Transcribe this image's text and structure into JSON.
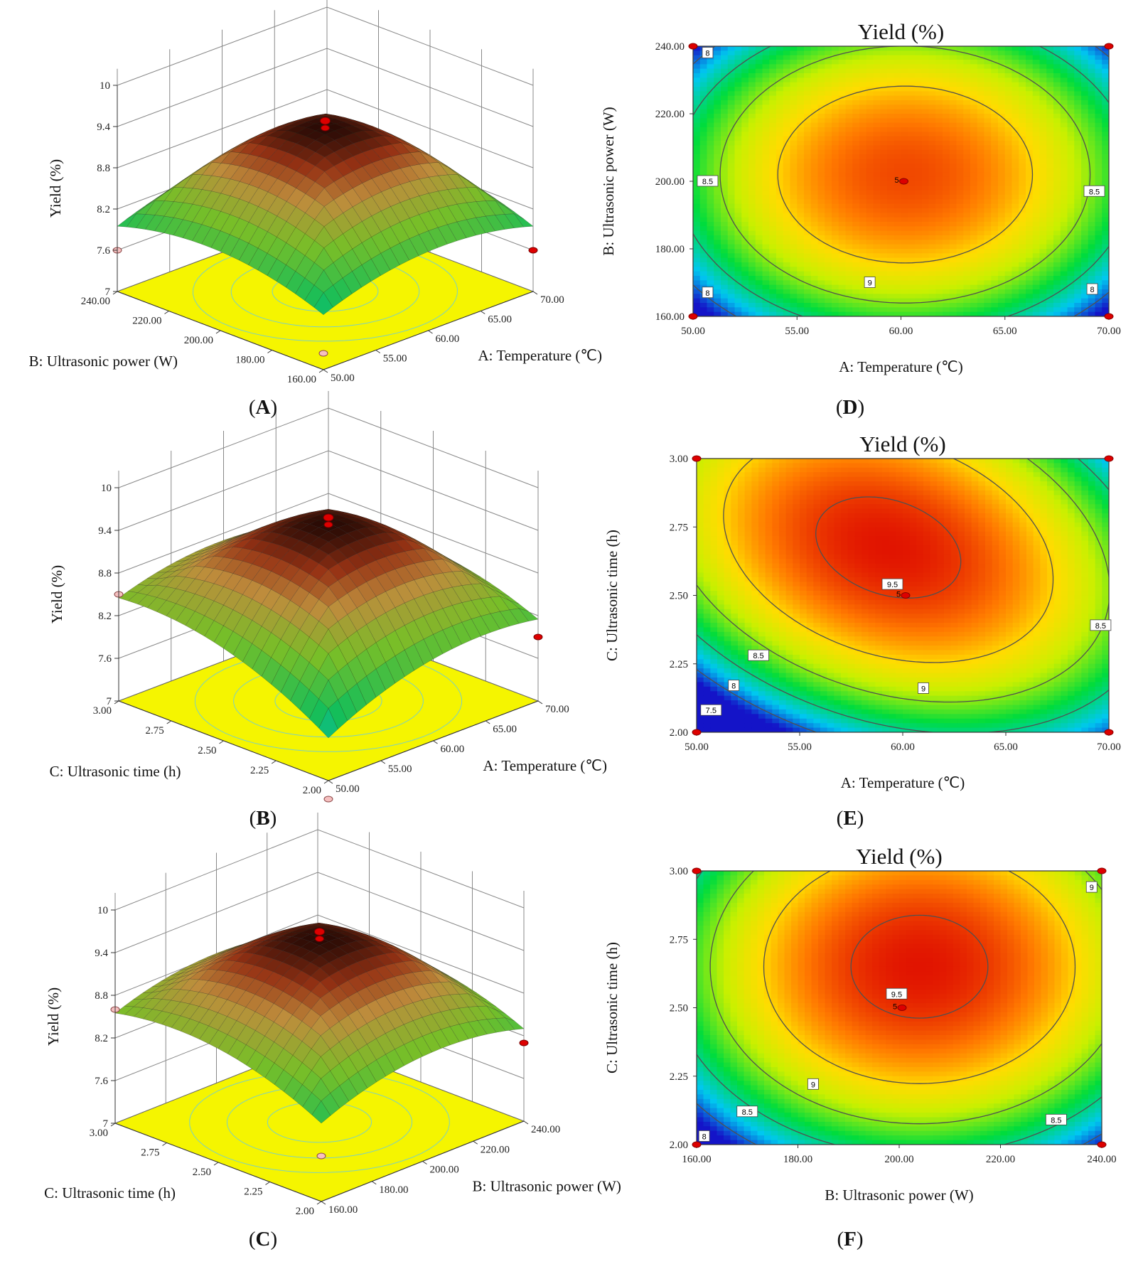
{
  "chart_data": [
    {
      "panel": "A",
      "type": "surface3d",
      "zlabel": "Yield (%)",
      "zticks": [
        "7",
        "7.6",
        "8.2",
        "8.8",
        "9.4",
        "10"
      ],
      "zlim": [
        7,
        10
      ],
      "xlabel": "A: Temperature (℃)",
      "xticks": [
        "50.00",
        "55.00",
        "60.00",
        "65.00",
        "70.00"
      ],
      "ylabel": "B: Ultrasonic power (W)",
      "yticks": [
        "160.00",
        "180.00",
        "200.00",
        "220.00",
        "240.00"
      ],
      "peak": 9.4,
      "corners": {
        "low_low": 7.3,
        "left": 7.6,
        "right": 7.6,
        "back": 7.9
      }
    },
    {
      "panel": "B",
      "type": "surface3d",
      "zlabel": "Yield (%)",
      "zticks": [
        "7",
        "7.6",
        "8.2",
        "8.8",
        "9.4",
        "10"
      ],
      "zlim": [
        7,
        10
      ],
      "xlabel": "A: Temperature (℃)",
      "xticks": [
        "50.00",
        "55.00",
        "60.00",
        "65.00",
        "70.00"
      ],
      "ylabel": "C: Ultrasonic time (h)",
      "yticks": [
        "2.00",
        "2.25",
        "2.50",
        "2.75",
        "3.00"
      ],
      "peak": 9.5,
      "corners": {
        "low_low": 6.8,
        "left": 8.5,
        "right": 7.9,
        "back": 8.4
      }
    },
    {
      "panel": "C",
      "type": "surface3d",
      "zlabel": "Yield (%)",
      "zticks": [
        "7",
        "7.6",
        "8.2",
        "8.8",
        "9.4",
        "10"
      ],
      "zlim": [
        7,
        10
      ],
      "xlabel": "B: Ultrasonic power (W)",
      "xticks": [
        "160.00",
        "180.00",
        "200.00",
        "220.00",
        "240.00"
      ],
      "ylabel": "C: Ultrasonic time (h)",
      "yticks": [
        "2.00",
        "2.25",
        "2.50",
        "2.75",
        "3.00"
      ],
      "peak": 9.6,
      "corners": {
        "low_low": 7.7,
        "left": 8.6,
        "right": 8.1,
        "back": 8.6
      }
    },
    {
      "panel": "D",
      "type": "contour",
      "title": "Yield (%)",
      "xlabel": "A: Temperature (℃)",
      "xticks": [
        "50.00",
        "55.00",
        "60.00",
        "65.00",
        "70.00"
      ],
      "xlim": [
        50,
        70
      ],
      "ylabel": "B: Ultrasonic power (W)",
      "yticks": [
        "160.00",
        "180.00",
        "200.00",
        "220.00",
        "240.00"
      ],
      "ylim": [
        160,
        240
      ],
      "center": [
        60,
        200
      ],
      "center_label": "5",
      "contour_labels": [
        {
          "text": "8",
          "x": 50.7,
          "y": 238
        },
        {
          "text": "8.5",
          "x": 50.7,
          "y": 200
        },
        {
          "text": "9",
          "x": 58.5,
          "y": 170
        },
        {
          "text": "8",
          "x": 50.7,
          "y": 167
        },
        {
          "text": "8.5",
          "x": 69.3,
          "y": 197
        },
        {
          "text": "8",
          "x": 69.2,
          "y": 168
        }
      ]
    },
    {
      "panel": "E",
      "type": "contour",
      "title": "Yield (%)",
      "xlabel": "A: Temperature (℃)",
      "xticks": [
        "50.00",
        "55.00",
        "60.00",
        "65.00",
        "70.00"
      ],
      "xlim": [
        50,
        70
      ],
      "ylabel": "C: Ultrasonic time (h)",
      "yticks": [
        "2.00",
        "2.25",
        "2.50",
        "2.75",
        "3.00"
      ],
      "ylim": [
        2.0,
        3.0
      ],
      "center": [
        60,
        2.5
      ],
      "center_label": "5",
      "contour_labels": [
        {
          "text": "9.5",
          "x": 59.5,
          "y": 2.54
        },
        {
          "text": "9",
          "x": 61.0,
          "y": 2.16
        },
        {
          "text": "8.5",
          "x": 53.0,
          "y": 2.28
        },
        {
          "text": "8",
          "x": 51.8,
          "y": 2.17
        },
        {
          "text": "7.5",
          "x": 50.7,
          "y": 2.08
        },
        {
          "text": "8.5",
          "x": 69.6,
          "y": 2.39
        }
      ]
    },
    {
      "panel": "F",
      "type": "contour",
      "title": "Yield (%)",
      "xlabel": "B: Ultrasonic power (W)",
      "xticks": [
        "160.00",
        "180.00",
        "200.00",
        "220.00",
        "240.00"
      ],
      "xlim": [
        160,
        240
      ],
      "ylabel": "C: Ultrasonic time (h)",
      "yticks": [
        "2.00",
        "2.25",
        "2.50",
        "2.75",
        "3.00"
      ],
      "ylim": [
        2.0,
        3.0
      ],
      "center": [
        200,
        2.5
      ],
      "center_label": "5",
      "contour_labels": [
        {
          "text": "9.5",
          "x": 199.5,
          "y": 2.55
        },
        {
          "text": "9",
          "x": 238,
          "y": 2.94
        },
        {
          "text": "9",
          "x": 183,
          "y": 2.22
        },
        {
          "text": "8.5",
          "x": 170,
          "y": 2.12
        },
        {
          "text": "8.5",
          "x": 231,
          "y": 2.09
        },
        {
          "text": "8",
          "x": 161.5,
          "y": 2.03
        }
      ]
    }
  ],
  "captions": [
    "(A)",
    "(B)",
    "(C)",
    "(D)",
    "(E)",
    "(F)"
  ]
}
